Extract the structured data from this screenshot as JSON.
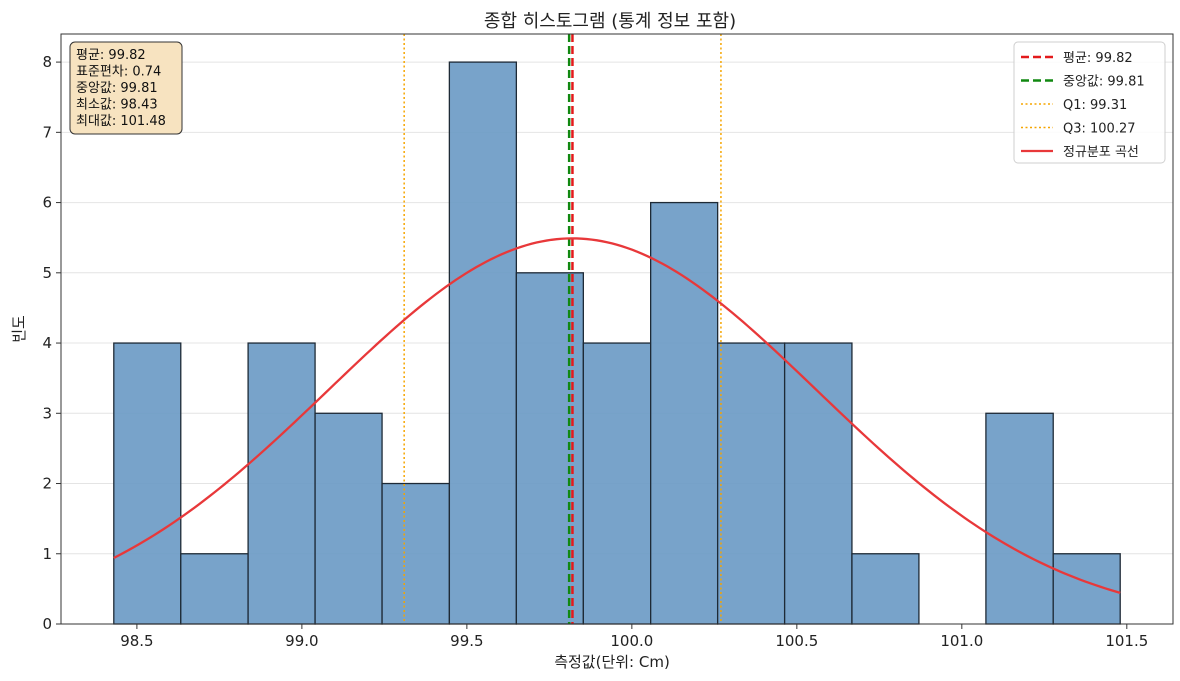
{
  "chart_data": {
    "type": "bar",
    "title": "종합 히스토그램 (통계 정보 포함)",
    "xlabel": "측정값(단위: Cm)",
    "ylabel": "빈도",
    "xlim": [
      98.27,
      101.64
    ],
    "ylim": [
      0,
      8.4
    ],
    "xticks": [
      "98.5",
      "99.0",
      "99.5",
      "100.0",
      "100.5",
      "101.0",
      "101.5"
    ],
    "xtick_values": [
      98.5,
      99.0,
      99.5,
      100.0,
      100.5,
      101.0,
      101.5
    ],
    "yticks": [
      "0",
      "1",
      "2",
      "3",
      "4",
      "5",
      "6",
      "7",
      "8"
    ],
    "ytick_values": [
      0,
      1,
      2,
      3,
      4,
      5,
      6,
      7,
      8
    ],
    "grid": "horizontal",
    "bins": {
      "edges": [
        98.43,
        98.633,
        98.837,
        99.04,
        99.243,
        99.447,
        99.65,
        99.853,
        100.057,
        100.26,
        100.463,
        100.667,
        100.87,
        101.073,
        101.277,
        101.48
      ],
      "counts": [
        4,
        1,
        4,
        3,
        2,
        8,
        5,
        4,
        6,
        4,
        4,
        1,
        0,
        3,
        1
      ],
      "color": "#6c9bc6"
    },
    "lines": [
      {
        "name": "평균: 99.82",
        "x": 99.82,
        "color": "#e31a1c",
        "style": "dashed"
      },
      {
        "name": "중앙값: 99.81",
        "x": 99.81,
        "color": "#118811",
        "style": "dashed"
      },
      {
        "name": "Q1: 99.31",
        "x": 99.31,
        "color": "#f5a500",
        "style": "dotted"
      },
      {
        "name": "Q3: 100.27",
        "x": 100.27,
        "color": "#f5a500",
        "style": "dotted"
      }
    ],
    "curve": {
      "name": "정규분포 곡선",
      "mean": 99.82,
      "std": 0.74,
      "x_range": [
        98.43,
        101.48
      ],
      "peak": 5.49,
      "color": "#e8383a"
    },
    "legend_position": "top-right",
    "stats_box": [
      "평균: 99.82",
      "표준편차: 0.74",
      "중앙값: 99.81",
      "최소값: 98.43",
      "최대값: 101.48"
    ]
  }
}
